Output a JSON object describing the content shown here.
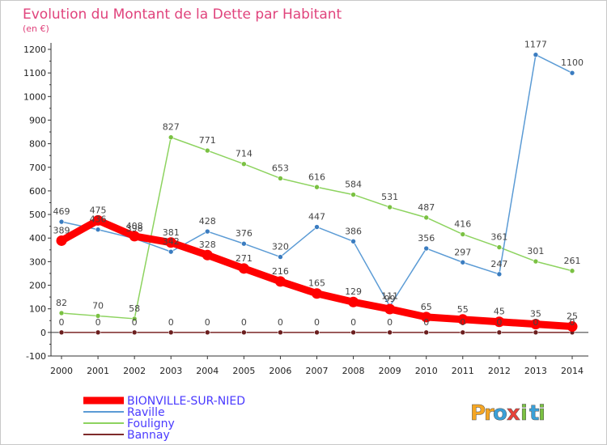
{
  "chart_data": {
    "type": "line",
    "title": "Evolution du Montant de la Dette par Habitant",
    "ylabel": "(en €)",
    "ylim": [
      -100,
      1200
    ],
    "yticks": [
      -100,
      0,
      100,
      200,
      300,
      400,
      500,
      600,
      700,
      800,
      900,
      1000,
      1100,
      1200
    ],
    "categories": [
      "2000",
      "2001",
      "2002",
      "2003",
      "2004",
      "2005",
      "2006",
      "2007",
      "2008",
      "2009",
      "2010",
      "2011",
      "2012",
      "2013",
      "2014"
    ],
    "grid": false,
    "legend_position": "bottom-left",
    "series": [
      {
        "name": "BIONVILLE-SUR-NIED",
        "color": "#ff0000",
        "marker": "#ff0000",
        "width": 9,
        "values": [
          389,
          475,
          408,
          381,
          328,
          271,
          216,
          165,
          129,
          99,
          65,
          55,
          45,
          35,
          25
        ]
      },
      {
        "name": "Raville",
        "color": "#5b9bd5",
        "marker": "#3a7cc0",
        "width": 1.5,
        "values": [
          469,
          436,
          398,
          342,
          428,
          376,
          320,
          447,
          386,
          111,
          356,
          297,
          247,
          1177,
          1100
        ]
      },
      {
        "name": "Fouligny",
        "color": "#8dd35f",
        "marker": "#7ac142",
        "width": 1.5,
        "values": [
          82,
          70,
          58,
          827,
          771,
          714,
          653,
          616,
          584,
          531,
          487,
          416,
          361,
          301,
          261
        ]
      },
      {
        "name": "Bannay",
        "color": "#7f2a2a",
        "marker": "#6b1e1e",
        "width": 1.5,
        "values": [
          0,
          0,
          0,
          0,
          0,
          0,
          0,
          0,
          0,
          0,
          0,
          0,
          0,
          0,
          0
        ]
      }
    ]
  },
  "brand": {
    "letters": [
      "P",
      "r",
      "o",
      "x",
      "i",
      "t",
      "i"
    ],
    "colors": [
      "#f5a623",
      "#f5a623",
      "#3aa0d8",
      "#e8433a",
      "#7ac142",
      "#3aa0d8",
      "#7ac142"
    ]
  }
}
